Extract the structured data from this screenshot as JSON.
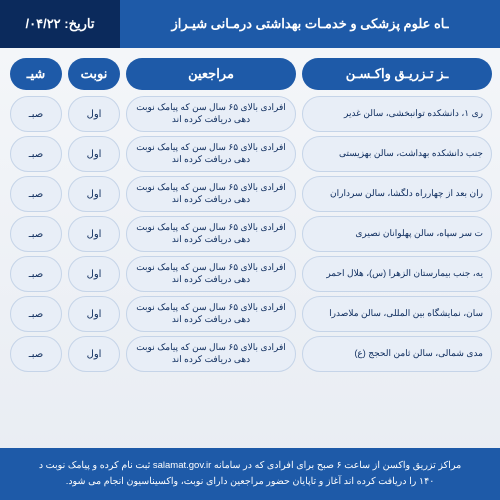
{
  "header": {
    "title": "ـاه علوم پزشکی و خدمـات بهداشتی درمـانی شیـراز",
    "date_label": "تاریخ:",
    "date_value": "۰۴/۲۲/"
  },
  "columns": {
    "center": "ـز تـزریـق واکـسـن",
    "visitors": "مراجعین",
    "turn": "نوبت",
    "shift": "شیـ"
  },
  "rows": [
    {
      "center": "ری ۱، دانشکده توانبخشی، سالن غدیر",
      "visitors": "افرادی بالای ۶۵ سال سن که پیامک نوبت دهی دریافت کرده اند",
      "turn": "اول",
      "shift": "صبـ"
    },
    {
      "center": "جنب دانشکده بهداشت، سالن بهزیستی",
      "visitors": "افرادی بالای ۶۵ سال سن که پیامک نوبت دهی دریافت کرده اند",
      "turn": "اول",
      "shift": "صبـ"
    },
    {
      "center": "ران بعد از چهارراه دلگشا، سالن سرداران",
      "visitors": "افرادی بالای ۶۵ سال سن که پیامک نوبت دهی دریافت کرده اند",
      "turn": "اول",
      "shift": "صبـ"
    },
    {
      "center": "ت سر سپاه، سالن پهلوانان نصیری",
      "visitors": "افرادی بالای ۶۵ سال سن که پیامک نوبت دهی دریافت کرده اند",
      "turn": "اول",
      "shift": "صبـ"
    },
    {
      "center": "یه، جنب بیمارستان الزهرا (س)، هلال احمر",
      "visitors": "افرادی بالای ۶۵ سال سن که پیامک نوبت دهی دریافت کرده اند",
      "turn": "اول",
      "shift": "صبـ"
    },
    {
      "center": "سان، نمایشگاه بین المللی، سالن ملاصدرا",
      "visitors": "افرادی بالای ۶۵ سال سن که پیامک نوبت دهی دریافت کرده اند",
      "turn": "اول",
      "shift": "صبـ"
    },
    {
      "center": "مدی شمالی، سالن ثامن الحجج (ع)",
      "visitors": "افرادی بالای ۶۵ سال سن که پیامک نوبت دهی دریافت کرده اند",
      "turn": "اول",
      "shift": "صبـ"
    }
  ],
  "footer": {
    "line1": "مراکز تزریق واکسن از ساعت ۶ صبح برای افرادی که در سامانه salamat.gov.ir ثبت نام کرده و پیامک نوبت د",
    "line2": "۱۴۰ را دریافت کرده اند آغاز و تاپایان حضور مراجعین دارای نوبت، واکسیناسیون انجام می شود."
  },
  "styling": {
    "header_blue": "#1e5aa8",
    "header_dark": "#0b2a5c",
    "cell_bg": "#e8eef7",
    "cell_border": "#c5d4e8",
    "cell_text": "#0b2a5c"
  }
}
